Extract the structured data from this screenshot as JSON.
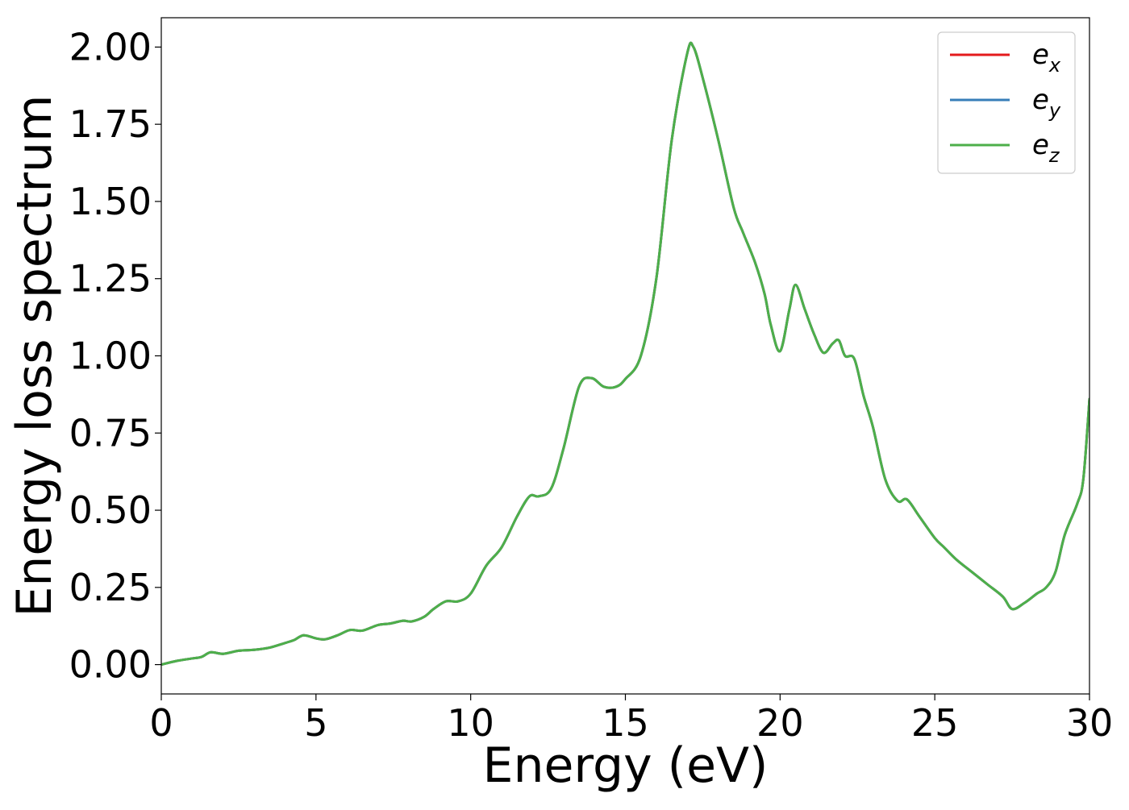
{
  "chart_data": {
    "type": "line",
    "xlabel": "Energy (eV)",
    "ylabel": "Energy loss spectrum",
    "xlim": [
      0,
      30
    ],
    "ylim": [
      -0.095,
      2.095
    ],
    "xticks": [
      0,
      5,
      10,
      15,
      20,
      25,
      30
    ],
    "xtick_labels": [
      "0",
      "5",
      "10",
      "15",
      "20",
      "25",
      "30"
    ],
    "yticks": [
      0,
      0.25,
      0.5,
      0.75,
      1.0,
      1.25,
      1.5,
      1.75,
      2.0
    ],
    "ytick_labels": [
      "0.00",
      "0.25",
      "0.50",
      "0.75",
      "1.00",
      "1.25",
      "1.50",
      "1.75",
      "2.00"
    ],
    "grid": false,
    "legend_position": "top-right",
    "x": [
      0,
      0.5,
      1.0,
      1.3,
      1.6,
      2.0,
      2.5,
      3.0,
      3.5,
      4.0,
      4.3,
      4.6,
      5.0,
      5.3,
      5.7,
      6.1,
      6.5,
      7.0,
      7.4,
      7.8,
      8.1,
      8.5,
      8.8,
      9.2,
      9.6,
      10.0,
      10.5,
      11.0,
      11.5,
      11.9,
      12.2,
      12.6,
      13.0,
      13.5,
      13.9,
      14.3,
      14.7,
      15.0,
      15.5,
      16.0,
      16.5,
      17.0,
      17.2,
      17.5,
      18.0,
      18.5,
      18.8,
      19.2,
      19.5,
      19.7,
      20.0,
      20.3,
      20.5,
      20.8,
      21.1,
      21.4,
      21.7,
      21.9,
      22.1,
      22.4,
      22.7,
      23.0,
      23.4,
      23.8,
      24.1,
      24.5,
      25.0,
      25.3,
      25.7,
      26.2,
      26.7,
      27.2,
      27.5,
      27.9,
      28.3,
      28.6,
      28.9,
      29.2,
      29.6,
      29.8,
      30.0
    ],
    "series": [
      {
        "name": "e_x",
        "label_base": "e",
        "label_sub": "x",
        "color": "#e41a1c",
        "values": [
          0.0,
          0.012,
          0.02,
          0.025,
          0.04,
          0.035,
          0.045,
          0.048,
          0.055,
          0.07,
          0.08,
          0.095,
          0.085,
          0.082,
          0.095,
          0.112,
          0.11,
          0.128,
          0.133,
          0.142,
          0.14,
          0.155,
          0.18,
          0.205,
          0.205,
          0.23,
          0.32,
          0.38,
          0.48,
          0.545,
          0.545,
          0.57,
          0.7,
          0.9,
          0.928,
          0.9,
          0.9,
          0.925,
          1.0,
          1.25,
          1.7,
          1.98,
          2.0,
          1.9,
          1.7,
          1.48,
          1.4,
          1.3,
          1.2,
          1.1,
          1.015,
          1.15,
          1.23,
          1.15,
          1.07,
          1.01,
          1.04,
          1.05,
          1.0,
          0.99,
          0.87,
          0.77,
          0.6,
          0.53,
          0.535,
          0.48,
          0.41,
          0.38,
          0.34,
          0.3,
          0.26,
          0.22,
          0.18,
          0.2,
          0.23,
          0.25,
          0.3,
          0.42,
          0.52,
          0.6,
          0.86
        ]
      },
      {
        "name": "e_y",
        "label_base": "e",
        "label_sub": "y",
        "color": "#377eb8",
        "values": [
          0.0,
          0.012,
          0.02,
          0.025,
          0.04,
          0.035,
          0.045,
          0.048,
          0.055,
          0.07,
          0.08,
          0.095,
          0.085,
          0.082,
          0.095,
          0.112,
          0.11,
          0.128,
          0.133,
          0.142,
          0.14,
          0.155,
          0.18,
          0.205,
          0.205,
          0.23,
          0.32,
          0.38,
          0.48,
          0.545,
          0.545,
          0.57,
          0.7,
          0.9,
          0.928,
          0.9,
          0.9,
          0.925,
          1.0,
          1.25,
          1.7,
          1.98,
          2.0,
          1.9,
          1.7,
          1.48,
          1.4,
          1.3,
          1.2,
          1.1,
          1.015,
          1.15,
          1.23,
          1.15,
          1.07,
          1.01,
          1.04,
          1.05,
          1.0,
          0.99,
          0.87,
          0.77,
          0.6,
          0.53,
          0.535,
          0.48,
          0.41,
          0.38,
          0.34,
          0.3,
          0.26,
          0.22,
          0.18,
          0.2,
          0.23,
          0.25,
          0.3,
          0.42,
          0.52,
          0.6,
          0.86
        ]
      },
      {
        "name": "e_z",
        "label_base": "e",
        "label_sub": "z",
        "color": "#4daf4a",
        "values": [
          0.0,
          0.012,
          0.02,
          0.025,
          0.04,
          0.035,
          0.045,
          0.048,
          0.055,
          0.07,
          0.08,
          0.095,
          0.085,
          0.082,
          0.095,
          0.112,
          0.11,
          0.128,
          0.133,
          0.142,
          0.14,
          0.155,
          0.18,
          0.205,
          0.205,
          0.23,
          0.32,
          0.38,
          0.48,
          0.545,
          0.545,
          0.57,
          0.7,
          0.9,
          0.928,
          0.9,
          0.9,
          0.925,
          1.0,
          1.25,
          1.7,
          1.98,
          2.0,
          1.9,
          1.7,
          1.48,
          1.4,
          1.3,
          1.2,
          1.1,
          1.015,
          1.15,
          1.23,
          1.15,
          1.07,
          1.01,
          1.04,
          1.05,
          1.0,
          0.99,
          0.87,
          0.77,
          0.6,
          0.53,
          0.535,
          0.48,
          0.41,
          0.38,
          0.34,
          0.3,
          0.26,
          0.22,
          0.18,
          0.2,
          0.23,
          0.25,
          0.3,
          0.42,
          0.52,
          0.6,
          0.86
        ]
      }
    ]
  }
}
